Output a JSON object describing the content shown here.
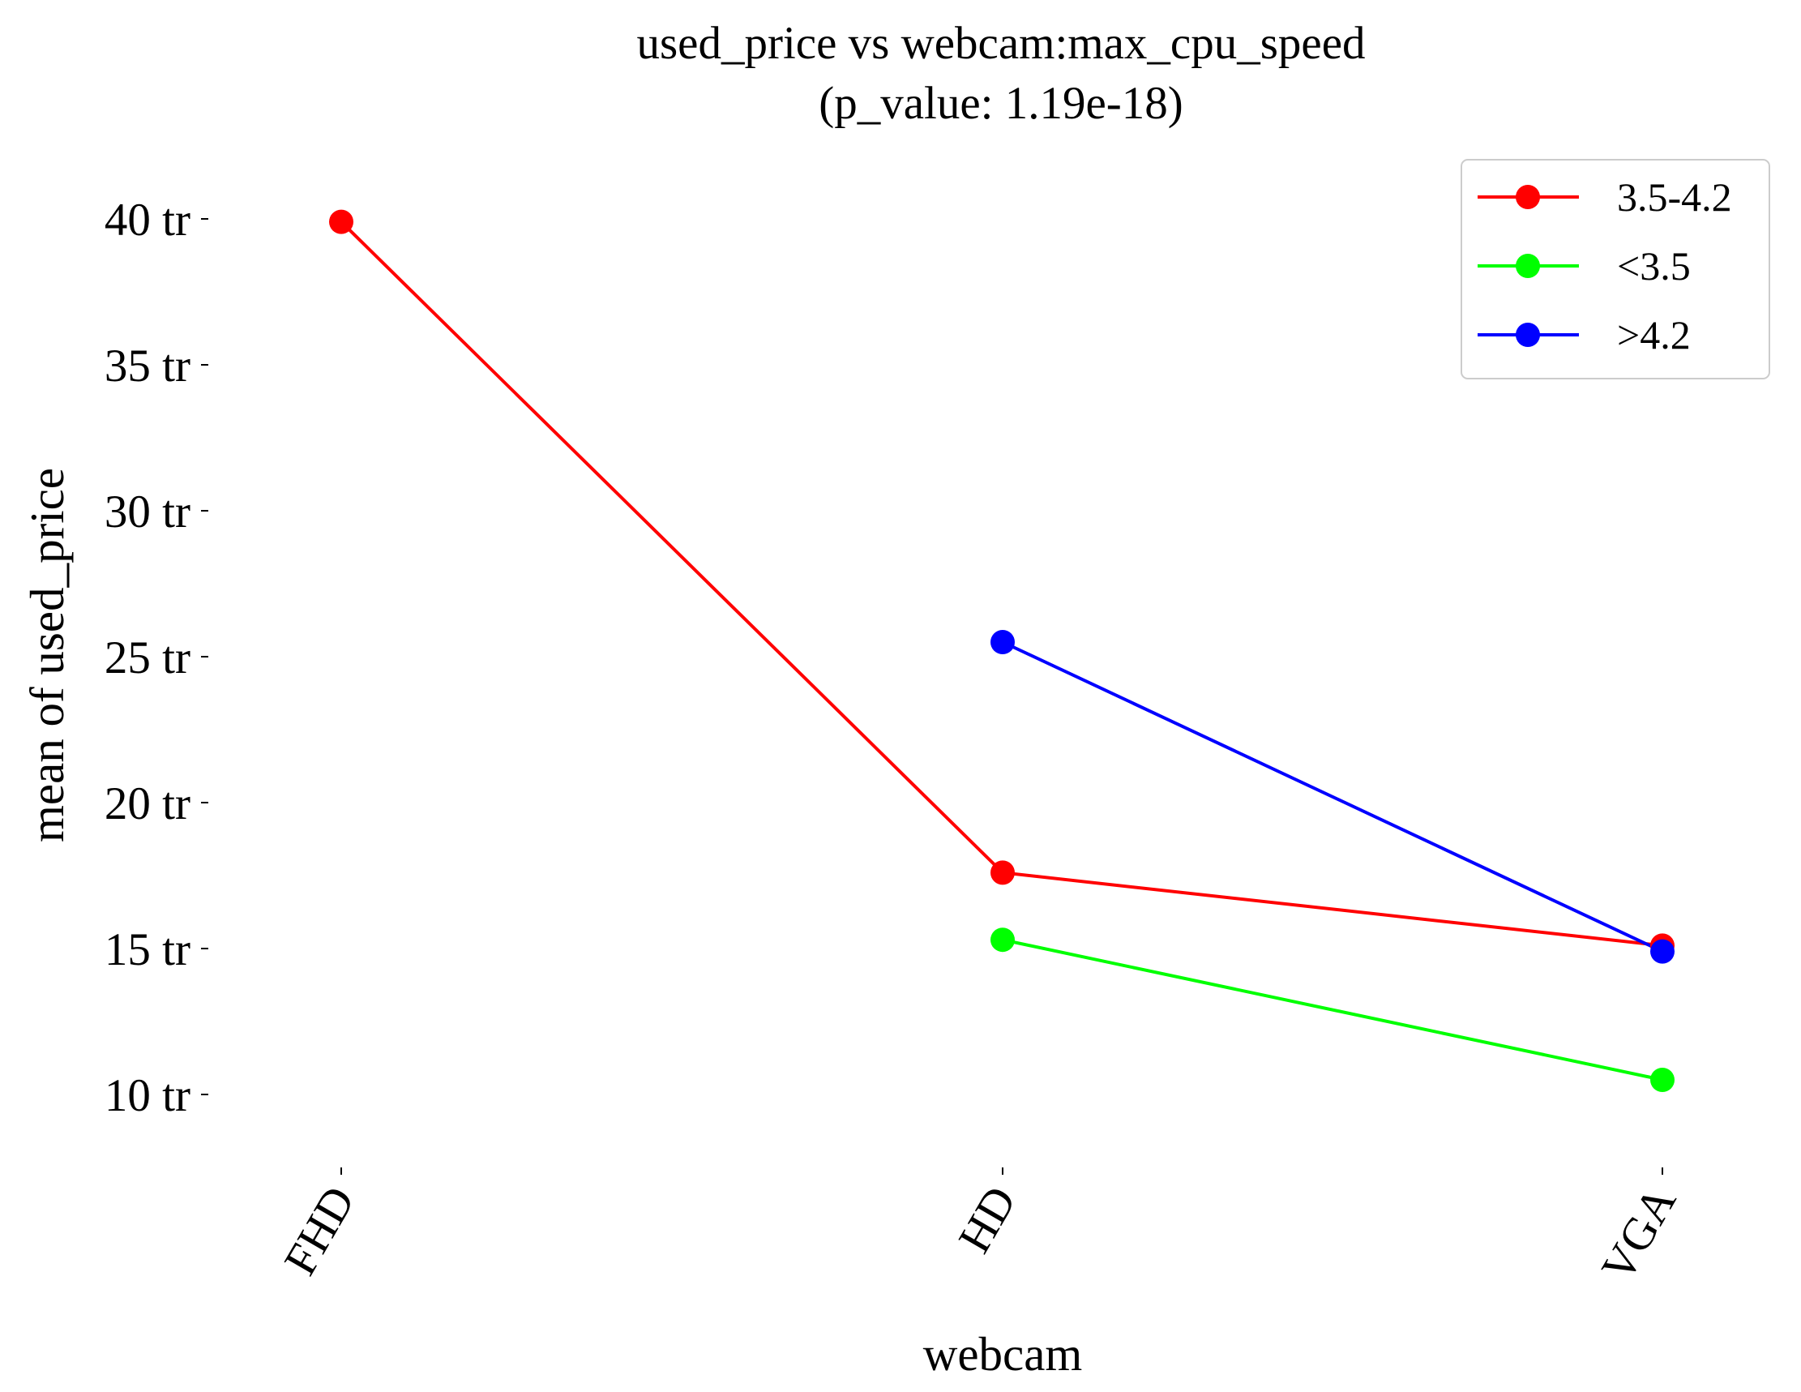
{
  "chart_data": {
    "type": "line",
    "title": "used_price vs webcam:max_cpu_speed",
    "subtitle": "(p_value: 1.19e-18)",
    "xlabel": "webcam",
    "ylabel": "mean of used_price",
    "categories": [
      "FHD",
      "HD",
      "VGA"
    ],
    "yticks": [
      10,
      15,
      20,
      25,
      30,
      35,
      40
    ],
    "ytick_suffix": " tr",
    "ylim": [
      7.4,
      42.8
    ],
    "grid": false,
    "legend_position": "top-right",
    "series": [
      {
        "name": "3.5-4.2",
        "color": "#ff0000",
        "values": [
          39.9,
          17.6,
          15.1
        ]
      },
      {
        "name": "<3.5",
        "color": "#00ff00",
        "values": [
          null,
          15.3,
          10.5
        ]
      },
      {
        "name": ">4.2",
        "color": "#0000ff",
        "values": [
          null,
          25.5,
          14.9
        ]
      }
    ]
  }
}
